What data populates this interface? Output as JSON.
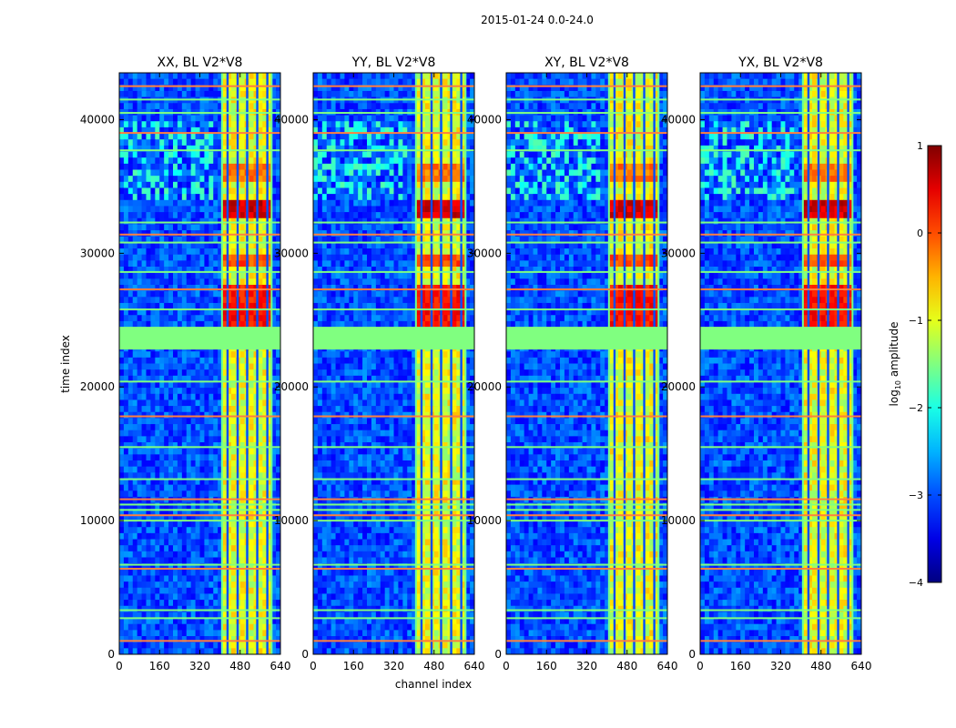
{
  "figure": {
    "suptitle": "2015-01-24 0.0-24.0",
    "colorbar_label_prefix": "log",
    "colorbar_label_sub": "10",
    "colorbar_label_suffix": " amplitude"
  },
  "chart_data": {
    "type": "heatmap",
    "title": "2015-01-24 0.0-24.0",
    "xlabel": "channel index",
    "ylabel": "time index",
    "xlim": [
      0,
      640
    ],
    "ylim": [
      0,
      43500
    ],
    "x_ticks": [
      0,
      160,
      320,
      480,
      640
    ],
    "x_tick_labels": [
      "0",
      "160",
      "320",
      "480",
      "640"
    ],
    "y_ticks": [
      0,
      10000,
      20000,
      30000,
      40000
    ],
    "y_tick_labels": [
      "0",
      "10000",
      "20000",
      "30000",
      "40000"
    ],
    "panels": [
      {
        "title": "XX, BL V2*V8"
      },
      {
        "title": "YY, BL V2*V8"
      },
      {
        "title": "XY, BL V2*V8"
      },
      {
        "title": "YX, BL V2*V8"
      }
    ],
    "colorbar": {
      "label": "log10 amplitude",
      "range": [
        -4,
        1
      ],
      "ticks": [
        1,
        0,
        -1,
        -2,
        -3,
        -4
      ],
      "tick_labels": [
        "1",
        "0",
        "−1",
        "−2",
        "−3",
        "−4"
      ],
      "colormap": "jet"
    },
    "features": {
      "background_level": -3.0,
      "signal_channel_band": [
        408,
        600
      ],
      "dead_channel_band": [
        408,
        605
      ],
      "dead_time_band": [
        22800,
        24500
      ],
      "flagged_level": -1.5,
      "strong_burst_rows": [
        {
          "y0": 32500,
          "y1": 34000,
          "level": 0.6
        },
        {
          "y0": 24500,
          "y1": 27500,
          "level": 0.3
        },
        {
          "y0": 29000,
          "y1": 30000,
          "level": 0.0
        },
        {
          "y0": 35500,
          "y1": 36500,
          "level": -0.2
        }
      ],
      "rfi_rows": [
        1000,
        2700,
        3300,
        6400,
        6700,
        10000,
        10400,
        10800,
        11200,
        11600,
        13100,
        15500,
        17800,
        20400,
        25800,
        27300,
        28600,
        30800,
        31400,
        32300,
        37700,
        39000,
        40500,
        41500,
        42500
      ]
    }
  }
}
